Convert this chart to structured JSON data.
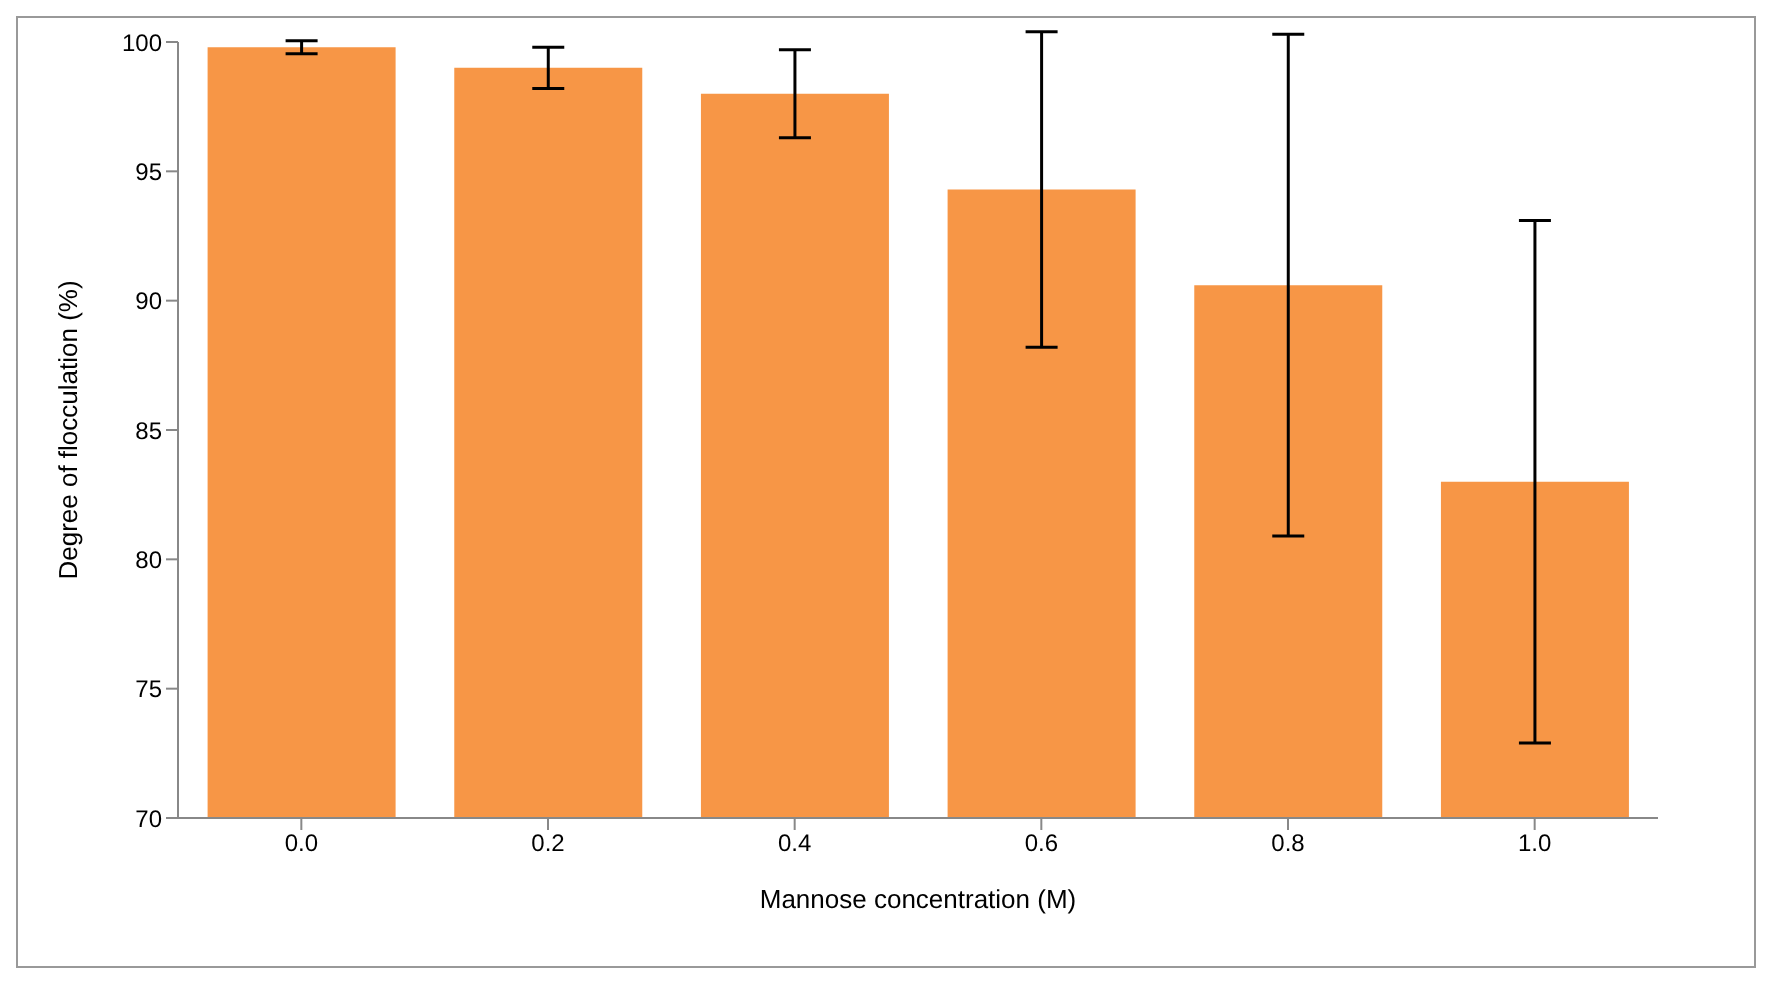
{
  "chart_data": {
    "type": "bar",
    "xlabel": "Mannose concentration (M)",
    "ylabel": "Degree of flocculation (%)",
    "categories": [
      "0.0",
      "0.2",
      "0.4",
      "0.6",
      "0.8",
      "1.0"
    ],
    "values": [
      99.8,
      99.0,
      98.0,
      94.3,
      90.6,
      83.0
    ],
    "errors": [
      0.25,
      0.8,
      1.7,
      6.1,
      9.7,
      10.1
    ],
    "color": "#f79646",
    "ylim": [
      70,
      100
    ],
    "yticks": [
      70,
      75,
      80,
      85,
      90,
      95,
      100
    ],
    "grid": false,
    "legend": false
  }
}
